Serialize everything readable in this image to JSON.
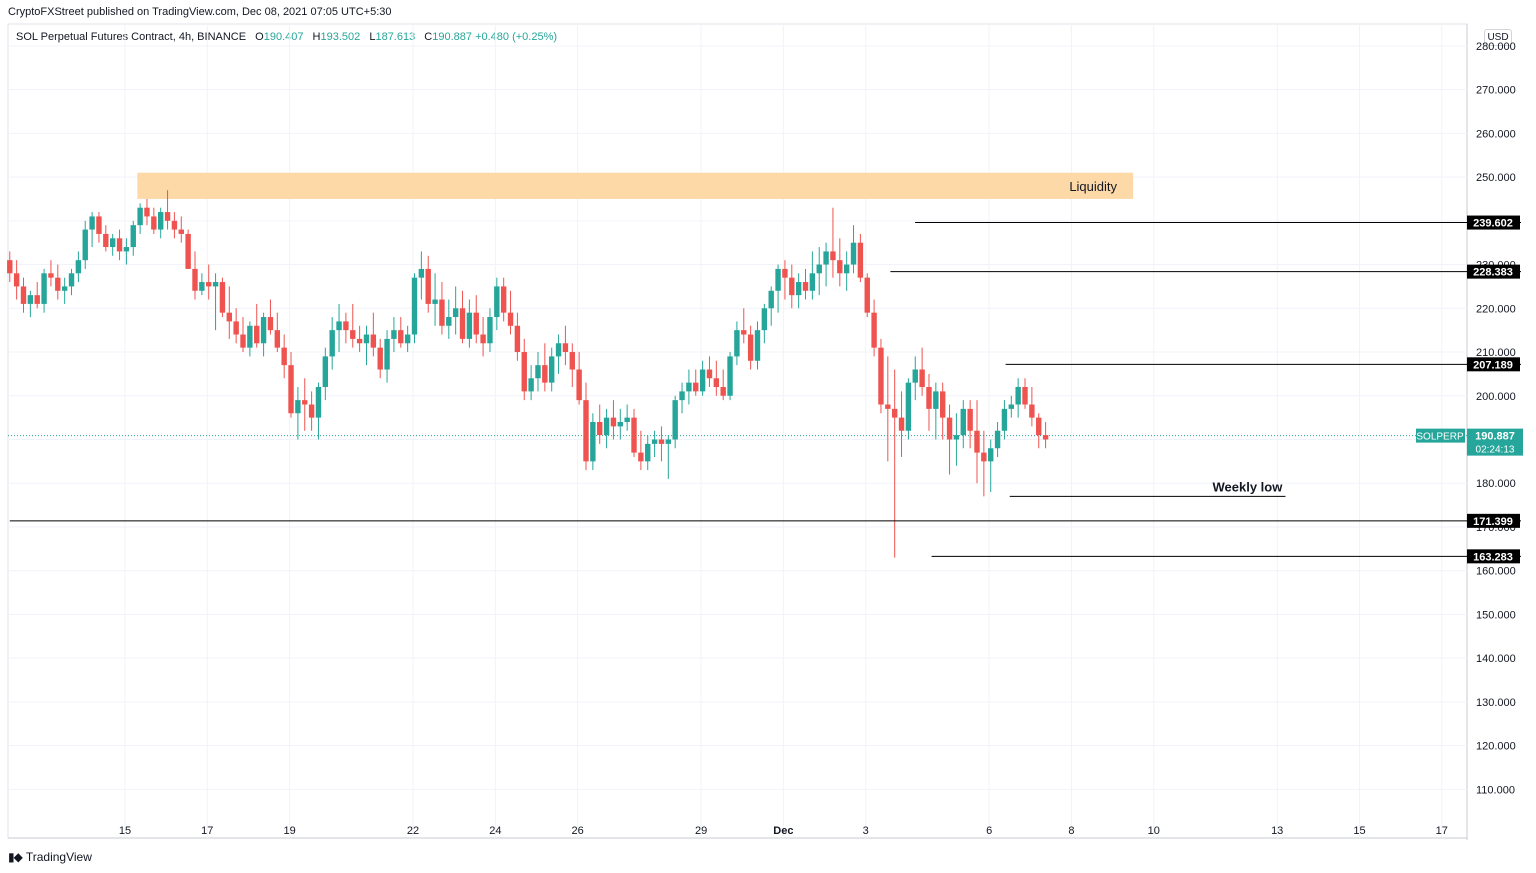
{
  "header": {
    "published_by": "CryptoFXStreet published on TradingView.com, Dec 08, 2021 07:05 UTC+5:30",
    "symbol_title": "SOL Perpetual Futures Contract, 4h, BINANCE",
    "ohlc": {
      "o_label": "O",
      "o": "190.407",
      "h_label": "H",
      "h": "193.502",
      "l_label": "L",
      "l": "187.613",
      "c_label": "C",
      "c": "190.887",
      "change": "+0.480 (+0.25%)"
    },
    "currency": "USD"
  },
  "footer": {
    "brand": "TradingView"
  },
  "colors": {
    "up": "#26a69a",
    "down": "#ef5350",
    "liquidity": "#fdd9a8",
    "last_price": "#26a69a",
    "level": "#000000"
  },
  "chart_data": {
    "type": "candlestick",
    "title": "SOL Perpetual Futures Contract, 4h, BINANCE",
    "yrange": [
      103,
      285
    ],
    "y_ticks": [
      110,
      120,
      130,
      140,
      150,
      160,
      170,
      180,
      190,
      200,
      210,
      220,
      230,
      240,
      250,
      260,
      270,
      280
    ],
    "x_ticks": [
      {
        "label": "15",
        "day": 15
      },
      {
        "label": "17",
        "day": 17
      },
      {
        "label": "19",
        "day": 19
      },
      {
        "label": "22",
        "day": 22
      },
      {
        "label": "24",
        "day": 24
      },
      {
        "label": "26",
        "day": 26
      },
      {
        "label": "29",
        "day": 29
      },
      {
        "label": "Dec",
        "day": 31
      },
      {
        "label": "3",
        "day": 33
      },
      {
        "label": "6",
        "day": 36
      },
      {
        "label": "8",
        "day": 38
      },
      {
        "label": "10",
        "day": 40
      },
      {
        "label": "13",
        "day": 43
      },
      {
        "label": "15",
        "day": 45
      },
      {
        "label": "17",
        "day": 47
      }
    ],
    "start_day": 12.2,
    "bar_step_days": 0.1667,
    "candles": [
      [
        231,
        233,
        226,
        228
      ],
      [
        228,
        231,
        222,
        225
      ],
      [
        225,
        227,
        219,
        221
      ],
      [
        221,
        224,
        218,
        223
      ],
      [
        223,
        226,
        220,
        221
      ],
      [
        221,
        229,
        219,
        228
      ],
      [
        228,
        231,
        225,
        227
      ],
      [
        227,
        230,
        222,
        224
      ],
      [
        224,
        227,
        221,
        225
      ],
      [
        225,
        229,
        223,
        228
      ],
      [
        228,
        233,
        226,
        231
      ],
      [
        231,
        240,
        229,
        238
      ],
      [
        238,
        242,
        234,
        241
      ],
      [
        241,
        242,
        235,
        237
      ],
      [
        237,
        239,
        233,
        234
      ],
      [
        234,
        237,
        232,
        236
      ],
      [
        236,
        238,
        231,
        233
      ],
      [
        233,
        236,
        230,
        234
      ],
      [
        234,
        240,
        232,
        239
      ],
      [
        239,
        244,
        237,
        243
      ],
      [
        243,
        245,
        239,
        241
      ],
      [
        241,
        243,
        237,
        238
      ],
      [
        238,
        243,
        236,
        242
      ],
      [
        242,
        247,
        238,
        240
      ],
      [
        240,
        242,
        236,
        238
      ],
      [
        238,
        241,
        235,
        237
      ],
      [
        237,
        238,
        229,
        229
      ],
      [
        229,
        233,
        222,
        224
      ],
      [
        224,
        228,
        223,
        226
      ],
      [
        226,
        230,
        222,
        225
      ],
      [
        225,
        228,
        215,
        226
      ],
      [
        226,
        227,
        218,
        219
      ],
      [
        219,
        225,
        213,
        217
      ],
      [
        217,
        220,
        212,
        214
      ],
      [
        214,
        218,
        210,
        211
      ],
      [
        211,
        217,
        209,
        216
      ],
      [
        216,
        221,
        211,
        212
      ],
      [
        212,
        219,
        209,
        218
      ],
      [
        218,
        222,
        214,
        215
      ],
      [
        215,
        219,
        210,
        211
      ],
      [
        211,
        214,
        204,
        207
      ],
      [
        207,
        210,
        195,
        196
      ],
      [
        196,
        202,
        190,
        199
      ],
      [
        199,
        204,
        192,
        198
      ],
      [
        198,
        201,
        192,
        195
      ],
      [
        195,
        203,
        190,
        202
      ],
      [
        202,
        211,
        199,
        209
      ],
      [
        209,
        218,
        206,
        215
      ],
      [
        215,
        221,
        210,
        217
      ],
      [
        217,
        219,
        212,
        215
      ],
      [
        215,
        221,
        211,
        213
      ],
      [
        213,
        216,
        210,
        212
      ],
      [
        212,
        216,
        207,
        214
      ],
      [
        214,
        219,
        209,
        211
      ],
      [
        211,
        213,
        204,
        206
      ],
      [
        206,
        215,
        203,
        213
      ],
      [
        213,
        218,
        210,
        215
      ],
      [
        215,
        218,
        211,
        212
      ],
      [
        212,
        216,
        210,
        214
      ],
      [
        214,
        228,
        212,
        227
      ],
      [
        227,
        233,
        222,
        229
      ],
      [
        229,
        232,
        219,
        221
      ],
      [
        221,
        228,
        216,
        222
      ],
      [
        222,
        226,
        214,
        216
      ],
      [
        216,
        222,
        213,
        218
      ],
      [
        218,
        225,
        214,
        220
      ],
      [
        220,
        224,
        212,
        213
      ],
      [
        213,
        222,
        211,
        219
      ],
      [
        219,
        223,
        212,
        214
      ],
      [
        214,
        218,
        209,
        212
      ],
      [
        212,
        220,
        210,
        218
      ],
      [
        218,
        227,
        215,
        225
      ],
      [
        225,
        227,
        217,
        219
      ],
      [
        219,
        224,
        214,
        216
      ],
      [
        216,
        219,
        208,
        210
      ],
      [
        210,
        213,
        199,
        201
      ],
      [
        201,
        207,
        199,
        204
      ],
      [
        204,
        210,
        201,
        207
      ],
      [
        207,
        212,
        201,
        203
      ],
      [
        203,
        211,
        201,
        209
      ],
      [
        209,
        214,
        205,
        212
      ],
      [
        212,
        216,
        207,
        210
      ],
      [
        210,
        212,
        202,
        206
      ],
      [
        206,
        210,
        198,
        199
      ],
      [
        199,
        203,
        183,
        185
      ],
      [
        185,
        196,
        183,
        194
      ],
      [
        194,
        198,
        189,
        191
      ],
      [
        191,
        197,
        188,
        195
      ],
      [
        195,
        199,
        190,
        193
      ],
      [
        193,
        197,
        190,
        194
      ],
      [
        194,
        198,
        192,
        195
      ],
      [
        195,
        197,
        186,
        187
      ],
      [
        187,
        192,
        183,
        185
      ],
      [
        185,
        191,
        183,
        189
      ],
      [
        189,
        192,
        186,
        190
      ],
      [
        190,
        193,
        185,
        189
      ],
      [
        189,
        191,
        181,
        190
      ],
      [
        190,
        200,
        188,
        199
      ],
      [
        199,
        203,
        196,
        201
      ],
      [
        201,
        206,
        198,
        203
      ],
      [
        203,
        206,
        200,
        201
      ],
      [
        201,
        208,
        200,
        206
      ],
      [
        206,
        209,
        202,
        204
      ],
      [
        204,
        208,
        200,
        202
      ],
      [
        202,
        206,
        199,
        200
      ],
      [
        200,
        210,
        199,
        209
      ],
      [
        209,
        217,
        207,
        215
      ],
      [
        215,
        220,
        212,
        214
      ],
      [
        214,
        216,
        206,
        208
      ],
      [
        208,
        217,
        206,
        215
      ],
      [
        215,
        221,
        212,
        220
      ],
      [
        220,
        225,
        216,
        224
      ],
      [
        224,
        230,
        219,
        229
      ],
      [
        229,
        231,
        222,
        227
      ],
      [
        227,
        230,
        220,
        223
      ],
      [
        223,
        228,
        220,
        226
      ],
      [
        226,
        229,
        222,
        224
      ],
      [
        224,
        233,
        222,
        228
      ],
      [
        228,
        234,
        223,
        230
      ],
      [
        230,
        235,
        225,
        233
      ],
      [
        233,
        243,
        227,
        231
      ],
      [
        231,
        236,
        225,
        228
      ],
      [
        228,
        233,
        224,
        230
      ],
      [
        230,
        239,
        228,
        235
      ],
      [
        235,
        237,
        226,
        227
      ],
      [
        227,
        228,
        218,
        219
      ],
      [
        219,
        222,
        209,
        211
      ],
      [
        211,
        213,
        196,
        198
      ],
      [
        198,
        209,
        185,
        197
      ],
      [
        197,
        206,
        163,
        195
      ],
      [
        195,
        201,
        186,
        192
      ],
      [
        192,
        204,
        190,
        203
      ],
      [
        203,
        209,
        199,
        206
      ],
      [
        206,
        211,
        200,
        202
      ],
      [
        202,
        205,
        192,
        197
      ],
      [
        197,
        203,
        190,
        201
      ],
      [
        201,
        203,
        190,
        195
      ],
      [
        195,
        198,
        182,
        190
      ],
      [
        190,
        196,
        184,
        191
      ],
      [
        191,
        199,
        188,
        197
      ],
      [
        197,
        199,
        188,
        192
      ],
      [
        192,
        199,
        180,
        187
      ],
      [
        187,
        192,
        177,
        185
      ],
      [
        185,
        190,
        178,
        188
      ],
      [
        188,
        194,
        186,
        192
      ],
      [
        192,
        199,
        190,
        197
      ],
      [
        197,
        200,
        195,
        198
      ],
      [
        198,
        204,
        195,
        202
      ],
      [
        202,
        204,
        197,
        198
      ],
      [
        198,
        202,
        193,
        195
      ],
      [
        195,
        196,
        188,
        191
      ],
      [
        191,
        194,
        188,
        190
      ]
    ],
    "liquidity_zone": {
      "label": "Liquidity",
      "low": 245,
      "high": 251,
      "from_day": 15.3,
      "to_day": 39.5
    },
    "levels": [
      {
        "value": 239.602,
        "label": "239.602",
        "from_day": 34.2
      },
      {
        "value": 228.383,
        "label": "228.383",
        "from_day": 33.6
      },
      {
        "value": 207.189,
        "label": "207.189",
        "from_day": 36.4
      },
      {
        "value": 171.399,
        "label": "171.399",
        "from_day": 12.2
      },
      {
        "value": 163.283,
        "label": "163.283",
        "from_day": 34.6
      }
    ],
    "weekly_low": {
      "label": "Weekly low",
      "value": 177,
      "from_day": 36.5,
      "to_day": 43.2
    },
    "last_price": {
      "symbol": "SOLPERP",
      "value": 190.887,
      "label": "190.887",
      "countdown": "02:24:13"
    },
    "hidden_tick_labels": [
      "230.000",
      "170.000"
    ]
  }
}
